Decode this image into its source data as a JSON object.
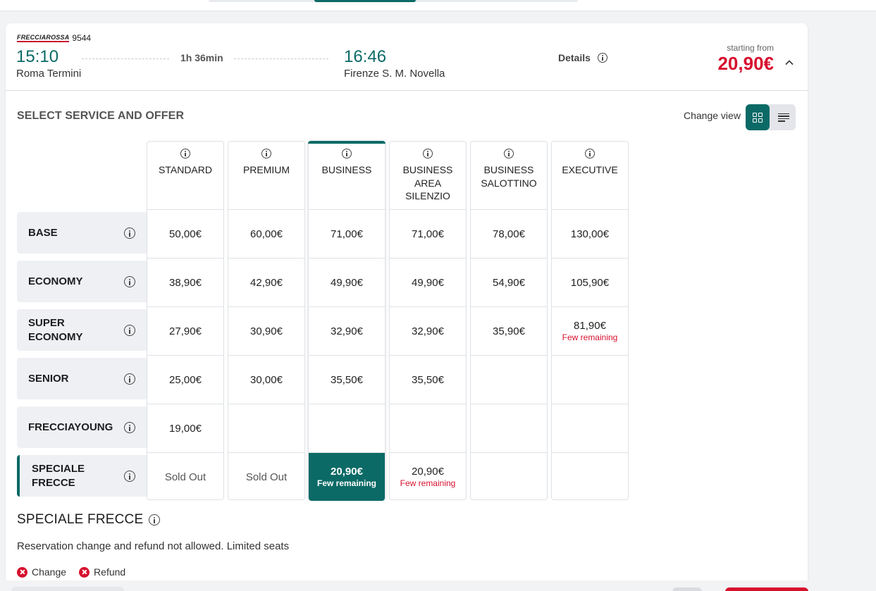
{
  "train": {
    "brand": "FRECCIAROSSA",
    "number": "9544",
    "departure_time": "15:10",
    "departure_station": "Roma Termini",
    "duration": "1h 36min",
    "arrival_time": "16:46",
    "arrival_station": "Firenze S. M. Novella",
    "details_label": "Details",
    "starting_from_label": "starting from",
    "starting_price": "20,90€"
  },
  "section": {
    "title": "SELECT SERVICE AND OFFER",
    "change_view_label": "Change view"
  },
  "services": [
    {
      "label": "STANDARD"
    },
    {
      "label": "PREMIUM"
    },
    {
      "label": "BUSINESS"
    },
    {
      "label": "BUSINESS AREA SILENZIO"
    },
    {
      "label": "BUSINESS SALOTTINO"
    },
    {
      "label": "EXECUTIVE"
    }
  ],
  "offers": [
    {
      "label": "BASE",
      "prices": [
        "50,00€",
        "60,00€",
        "71,00€",
        "71,00€",
        "78,00€",
        "130,00€"
      ],
      "notes": [
        "",
        "",
        "",
        "",
        "",
        ""
      ]
    },
    {
      "label": "ECONOMY",
      "prices": [
        "38,90€",
        "42,90€",
        "49,90€",
        "49,90€",
        "54,90€",
        "105,90€"
      ],
      "notes": [
        "",
        "",
        "",
        "",
        "",
        ""
      ]
    },
    {
      "label": "SUPER ECONOMY",
      "prices": [
        "27,90€",
        "30,90€",
        "32,90€",
        "32,90€",
        "35,90€",
        "81,90€"
      ],
      "notes": [
        "",
        "",
        "",
        "",
        "",
        "Few remaining"
      ]
    },
    {
      "label": "SENIOR",
      "prices": [
        "25,00€",
        "30,00€",
        "35,50€",
        "35,50€",
        "",
        ""
      ],
      "notes": [
        "",
        "",
        "",
        "",
        "",
        ""
      ]
    },
    {
      "label": "FRECCIAYOUNG",
      "prices": [
        "19,00€",
        "",
        "",
        "",
        "",
        ""
      ],
      "notes": [
        "",
        "",
        "",
        "",
        "",
        ""
      ]
    },
    {
      "label": "SPECIALE FRECCE",
      "prices": [
        "Sold Out",
        "Sold Out",
        "20,90€",
        "20,90€",
        "",
        ""
      ],
      "notes": [
        "",
        "",
        "Few remaining",
        "Few remaining",
        "",
        ""
      ]
    }
  ],
  "selected": {
    "service_index": 2,
    "offer_index": 5
  },
  "offer_detail": {
    "title": "SPECIALE FRECCE",
    "description": "Reservation change and refund not allowed. Limited seats",
    "conditions": [
      "Change",
      "Refund"
    ]
  },
  "colors": {
    "accent": "#0b6a66",
    "price_red": "#d7102e",
    "row_label_bg": "#eef0f3"
  },
  "icons": [
    "info-icon",
    "chevron-up-icon",
    "grid-view-icon",
    "list-view-icon",
    "cross-circle-icon"
  ]
}
